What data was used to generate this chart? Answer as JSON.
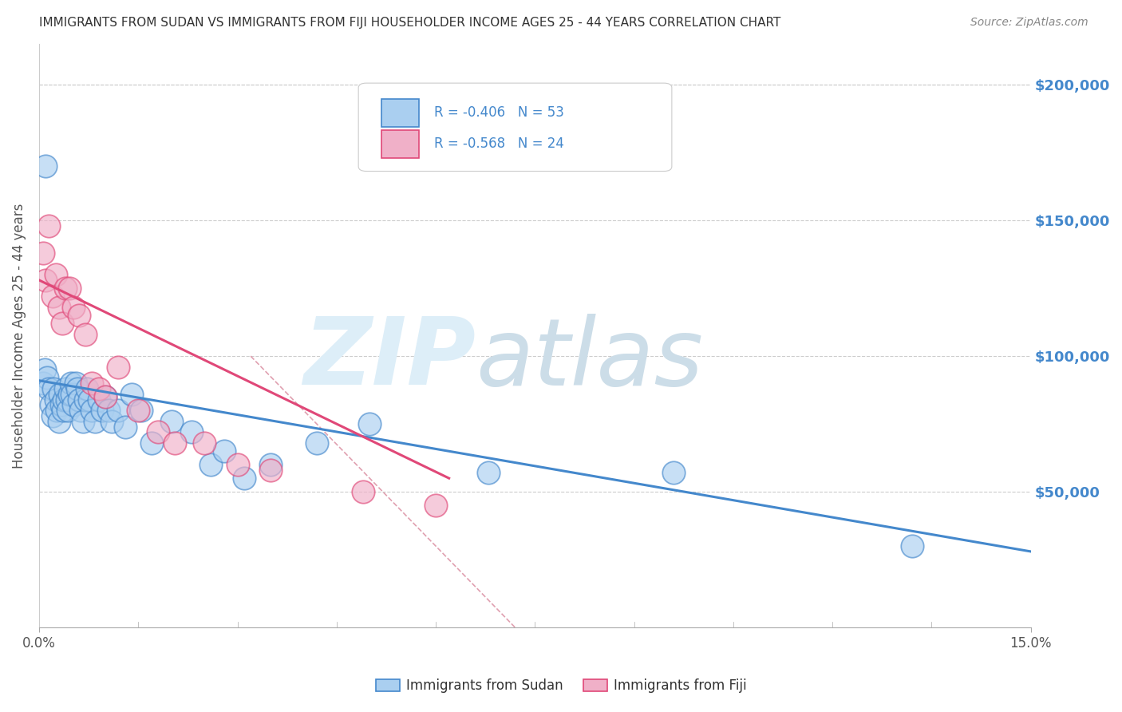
{
  "title": "IMMIGRANTS FROM SUDAN VS IMMIGRANTS FROM FIJI HOUSEHOLDER INCOME AGES 25 - 44 YEARS CORRELATION CHART",
  "source": "Source: ZipAtlas.com",
  "ylabel": "Householder Income Ages 25 - 44 years",
  "xmin": 0.0,
  "xmax": 15.0,
  "ymin": 0,
  "ymax": 215000,
  "yticks": [
    0,
    50000,
    100000,
    150000,
    200000
  ],
  "ytick_labels_right": [
    "",
    "$50,000",
    "$100,000",
    "$150,000",
    "$200,000"
  ],
  "sudan_R": -0.406,
  "sudan_N": 53,
  "fiji_R": -0.568,
  "fiji_N": 24,
  "sudan_color": "#aacff0",
  "fiji_color": "#f0b0c8",
  "sudan_line_color": "#4488cc",
  "fiji_line_color": "#e04878",
  "grid_color": "#cccccc",
  "background_color": "#ffffff",
  "sudan_x": [
    0.06,
    0.08,
    0.1,
    0.12,
    0.15,
    0.18,
    0.2,
    0.22,
    0.25,
    0.27,
    0.3,
    0.32,
    0.34,
    0.36,
    0.38,
    0.4,
    0.42,
    0.44,
    0.46,
    0.48,
    0.5,
    0.52,
    0.55,
    0.58,
    0.6,
    0.63,
    0.66,
    0.7,
    0.73,
    0.76,
    0.8,
    0.85,
    0.9,
    0.95,
    1.0,
    1.05,
    1.1,
    1.2,
    1.3,
    1.4,
    1.55,
    1.7,
    2.0,
    2.3,
    2.6,
    2.8,
    3.1,
    3.5,
    4.2,
    5.0,
    6.8,
    9.6,
    13.2
  ],
  "sudan_y": [
    90000,
    95000,
    170000,
    92000,
    88000,
    82000,
    78000,
    88000,
    84000,
    80000,
    76000,
    86000,
    82000,
    80000,
    84000,
    88000,
    84000,
    80000,
    86000,
    90000,
    86000,
    82000,
    90000,
    88000,
    84000,
    80000,
    76000,
    84000,
    88000,
    84000,
    80000,
    76000,
    84000,
    80000,
    85000,
    80000,
    76000,
    80000,
    74000,
    86000,
    80000,
    68000,
    76000,
    72000,
    60000,
    65000,
    55000,
    60000,
    68000,
    75000,
    57000,
    57000,
    30000
  ],
  "fiji_x": [
    0.06,
    0.1,
    0.15,
    0.2,
    0.25,
    0.3,
    0.35,
    0.4,
    0.46,
    0.52,
    0.6,
    0.7,
    0.8,
    0.9,
    1.0,
    1.2,
    1.5,
    1.8,
    2.05,
    2.5,
    3.0,
    3.5,
    4.9,
    6.0
  ],
  "fiji_y": [
    138000,
    128000,
    148000,
    122000,
    130000,
    118000,
    112000,
    125000,
    125000,
    118000,
    115000,
    108000,
    90000,
    88000,
    85000,
    96000,
    80000,
    72000,
    68000,
    68000,
    60000,
    58000,
    50000,
    45000
  ],
  "sudan_trend_x0": 0.0,
  "sudan_trend_y0": 91000,
  "sudan_trend_x1": 15.0,
  "sudan_trend_y1": 28000,
  "fiji_trend_x0": 0.0,
  "fiji_trend_y0": 128000,
  "fiji_trend_x1": 6.2,
  "fiji_trend_y1": 55000,
  "ref_line_x0": 3.2,
  "ref_line_y0": 100000,
  "ref_line_x1": 7.2,
  "ref_line_y1": 0
}
